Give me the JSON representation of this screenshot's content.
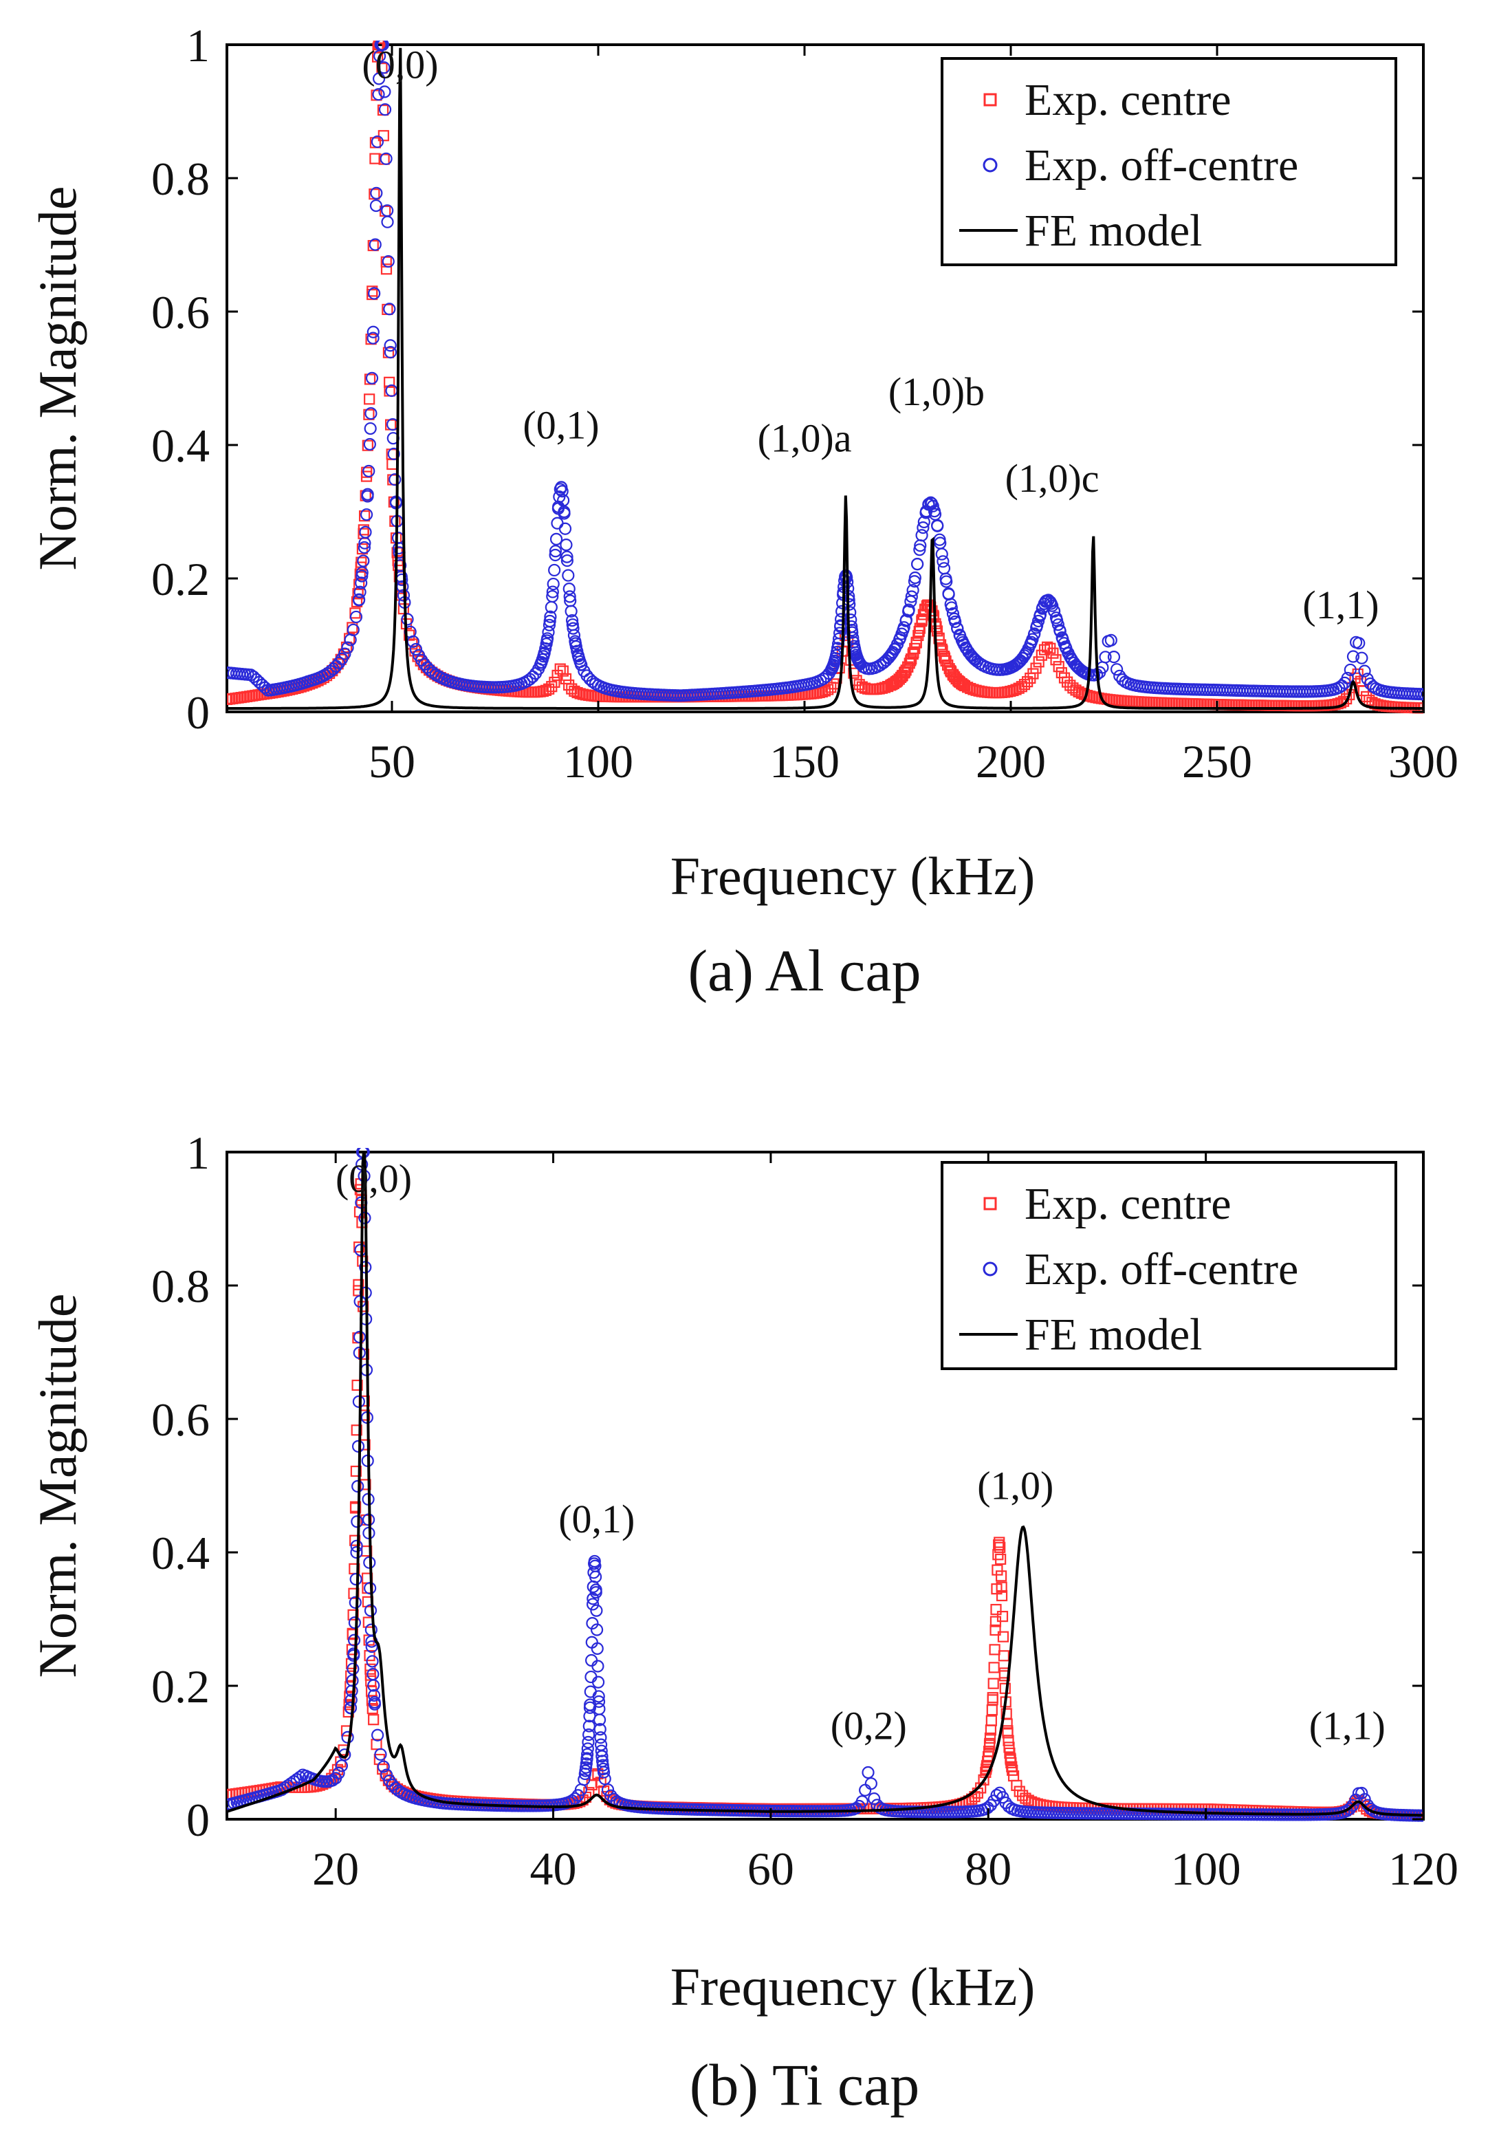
{
  "figure": {
    "colors": {
      "exp_centre": "#ff3030",
      "exp_off_centre": "#2a2ad8",
      "fe_model": "#000000"
    }
  },
  "chart_data": [
    {
      "type": "line",
      "caption": "(a) Al cap",
      "xlabel": "Frequency (kHz)",
      "ylabel": "Norm. Magnitude",
      "xlim": [
        10,
        300
      ],
      "ylim": [
        0,
        1
      ],
      "xticks": [
        50,
        100,
        150,
        200,
        250,
        300
      ],
      "yticks": [
        0,
        0.2,
        0.4,
        0.6,
        0.8,
        1
      ],
      "ytick_labels": [
        "0",
        "0.2",
        "0.4",
        "0.6",
        "0.8",
        "1"
      ],
      "legend": {
        "position": "top-right",
        "entries": [
          "Exp. centre",
          "Exp. off-centre",
          "FE model"
        ]
      },
      "baseline": [
        [
          10,
          0.055
        ],
        [
          16,
          0.05
        ],
        [
          20,
          0.025
        ],
        [
          30,
          0.03
        ],
        [
          120,
          0.02
        ],
        [
          150,
          0.03
        ],
        [
          250,
          0.02
        ],
        [
          300,
          0.02
        ]
      ],
      "series": [
        {
          "name": "Exp. centre",
          "marker": "square",
          "color": "#ff3030",
          "base": [
            [
              10,
              0.015
            ],
            [
              18,
              0.02
            ],
            [
              30,
              0.025
            ],
            [
              60,
              0.03
            ],
            [
              100,
              0.02
            ],
            [
              150,
              0.022
            ],
            [
              250,
              0.01
            ],
            [
              300,
              0.005
            ]
          ],
          "peaks": [
            [
              47,
              1.0,
              2.2
            ],
            [
              91,
              0.04,
              1.5
            ],
            [
              160,
              0.09,
              1.4
            ],
            [
              180,
              0.14,
              3.5
            ],
            [
              209,
              0.08,
              3.5
            ],
            [
              284,
              0.05,
              1.5
            ]
          ]
        },
        {
          "name": "Exp. off-centre",
          "marker": "circle",
          "color": "#2a2ad8",
          "base": [
            [
              10,
              0.055
            ],
            [
              16,
              0.05
            ],
            [
              20,
              0.025
            ],
            [
              30,
              0.03
            ],
            [
              120,
              0.02
            ],
            [
              150,
              0.03
            ],
            [
              250,
              0.03
            ],
            [
              300,
              0.025
            ]
          ],
          "peaks": [
            [
              47.5,
              1.0,
              2.2
            ],
            [
              91,
              0.31,
              2.0
            ],
            [
              160,
              0.16,
              1.4
            ],
            [
              180.5,
              0.28,
              4.5
            ],
            [
              209,
              0.13,
              4.0
            ],
            [
              224,
              0.07,
              1.2
            ],
            [
              284,
              0.08,
              1.5
            ]
          ]
        },
        {
          "name": "FE model",
          "marker": "line",
          "color": "#000000",
          "base": [
            [
              10,
              0.005
            ],
            [
              300,
              0.005
            ]
          ],
          "peaks": [
            [
              52,
              1.0,
              0.5
            ],
            [
              160,
              0.32,
              0.5
            ],
            [
              181,
              0.26,
              0.6
            ],
            [
              220,
              0.26,
              0.5
            ],
            [
              283,
              0.04,
              1.0
            ]
          ]
        }
      ],
      "annotations": [
        {
          "text": "(0,0)",
          "x": 52,
          "y": 0.95
        },
        {
          "text": "(0,1)",
          "x": 91,
          "y": 0.41
        },
        {
          "text": "(1,0)a",
          "x": 150,
          "y": 0.39
        },
        {
          "text": "(1,0)b",
          "x": 182,
          "y": 0.46
        },
        {
          "text": "(1,0)c",
          "x": 210,
          "y": 0.33
        },
        {
          "text": "(1,1)",
          "x": 280,
          "y": 0.14
        }
      ]
    },
    {
      "type": "line",
      "caption": "(b) Ti cap",
      "xlabel": "Frequency (kHz)",
      "ylabel": "Norm. Magnitude",
      "xlim": [
        10,
        120
      ],
      "ylim": [
        0,
        1
      ],
      "xticks": [
        20,
        40,
        60,
        80,
        100,
        120
      ],
      "yticks": [
        0,
        0.2,
        0.4,
        0.6,
        0.8,
        1
      ],
      "ytick_labels": [
        "0",
        "0.2",
        "0.4",
        "0.6",
        "0.8",
        "1"
      ],
      "legend": {
        "position": "top-right",
        "entries": [
          "Exp. centre",
          "Exp. off-centre",
          "FE model"
        ]
      },
      "series": [
        {
          "name": "Exp. centre",
          "marker": "square",
          "color": "#ff3030",
          "base": [
            [
              10,
              0.035
            ],
            [
              15,
              0.045
            ],
            [
              20,
              0.035
            ],
            [
              30,
              0.025
            ],
            [
              40,
              0.02
            ],
            [
              60,
              0.015
            ],
            [
              100,
              0.015
            ],
            [
              120,
              0.005
            ]
          ],
          "peaks": [
            [
              22.3,
              0.92,
              0.45
            ],
            [
              44,
              0.05,
              0.6
            ],
            [
              81,
              0.4,
              0.5
            ],
            [
              114,
              0.02,
              0.6
            ]
          ]
        },
        {
          "name": "Exp. off-centre",
          "marker": "circle",
          "color": "#2a2ad8",
          "base": [
            [
              10,
              0.02
            ],
            [
              15,
              0.04
            ],
            [
              17,
              0.06
            ],
            [
              20,
              0.03
            ],
            [
              30,
              0.02
            ],
            [
              60,
              0.012
            ],
            [
              120,
              0.005
            ]
          ],
          "peaks": [
            [
              22.5,
              1.0,
              0.45
            ],
            [
              43.8,
              0.37,
              0.35
            ],
            [
              69,
              0.06,
              0.35
            ],
            [
              81,
              0.03,
              0.6
            ],
            [
              114.2,
              0.035,
              0.6
            ]
          ]
        },
        {
          "name": "FE model",
          "marker": "line",
          "color": "#000000",
          "base": [
            [
              10,
              0.01
            ],
            [
              18,
              0.05
            ],
            [
              20,
              0.08
            ],
            [
              21,
              0.03
            ],
            [
              30,
              0.02
            ],
            [
              60,
              0.01
            ],
            [
              120,
              0.005
            ]
          ],
          "peaks": [
            [
              22.6,
              1.0,
              0.4
            ],
            [
              24,
              0.15,
              0.6
            ],
            [
              26,
              0.06,
              0.5
            ],
            [
              44,
              0.02,
              0.8
            ],
            [
              83.2,
              0.43,
              1.3
            ],
            [
              114,
              0.02,
              0.8
            ]
          ]
        }
      ],
      "annotations": [
        {
          "text": "(0,0)",
          "x": 23.5,
          "y": 0.94
        },
        {
          "text": "(0,1)",
          "x": 44,
          "y": 0.43
        },
        {
          "text": "(0,2)",
          "x": 69,
          "y": 0.12
        },
        {
          "text": "(1,0)",
          "x": 82.5,
          "y": 0.48
        },
        {
          "text": "(1,1)",
          "x": 113,
          "y": 0.12
        }
      ]
    }
  ]
}
